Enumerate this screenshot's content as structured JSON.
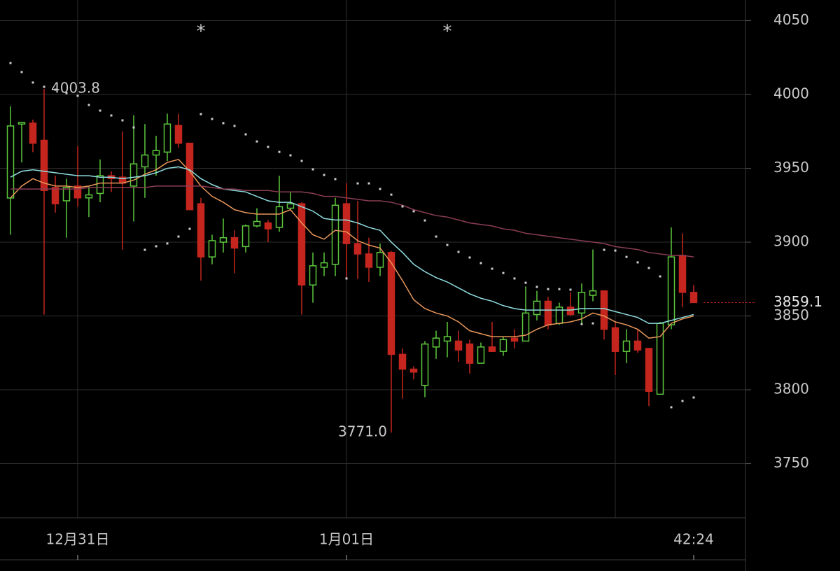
{
  "chart_data": {
    "type": "candlestick",
    "categories": [
      null,
      null,
      null,
      null,
      null,
      null,
      "12月31日",
      null,
      null,
      null,
      null,
      null,
      null,
      null,
      null,
      null,
      null,
      null,
      null,
      null,
      null,
      null,
      null,
      null,
      null,
      null,
      null,
      null,
      null,
      null,
      "1月01日",
      null,
      null,
      null,
      null,
      null,
      null,
      null,
      null,
      null,
      null,
      null,
      null,
      null,
      null,
      null,
      null,
      null,
      null,
      null,
      null,
      null,
      null,
      null,
      null,
      null,
      null,
      null,
      null,
      null,
      null,
      "42:24"
    ],
    "open": [
      3929.9,
      3980,
      3980.6,
      3969,
      3937,
      3928,
      3938,
      3930,
      3933,
      3945,
      3944,
      3938,
      3951,
      3959,
      3961,
      3979,
      3967,
      3926,
      3890,
      3900,
      3903,
      3897,
      3911,
      3913,
      3910,
      3923,
      3926,
      3871,
      3883,
      3885,
      3926,
      3899,
      3892,
      3883,
      3893,
      3824,
      3814,
      3803,
      3829,
      3833,
      3833,
      3831,
      3818,
      3829,
      3826,
      3835,
      3833,
      3851,
      3860,
      3845,
      3856,
      3852,
      3864,
      3867,
      3842,
      3826,
      3833,
      3828,
      3797,
      3844,
      3891,
      3866
    ],
    "high": [
      3992,
      3981,
      3983,
      4003.8,
      3945,
      3943,
      3965,
      3938,
      3956,
      3948,
      3975,
      3986,
      3980,
      3972,
      3987,
      3987,
      3967,
      3930,
      3905,
      3916,
      3908,
      3912,
      3923,
      3915,
      3945,
      3934,
      3927,
      3893,
      3893,
      3930,
      3940,
      3928,
      3903,
      3899,
      3894,
      3828,
      3816,
      3833,
      3840,
      3846,
      3840,
      3834,
      3832,
      3846,
      3836,
      3841,
      3870,
      3867,
      3863,
      3859,
      3866,
      3872,
      3895,
      3867,
      3846,
      3841,
      3841,
      3828,
      3846,
      3910,
      3906,
      3871
    ],
    "low": [
      3905,
      3954,
      3961,
      3851,
      3920,
      3903,
      3924,
      3917,
      3927,
      3934,
      3895,
      3914,
      3930,
      3945,
      3955,
      3964,
      3922,
      3874,
      3885,
      3893,
      3879,
      3893,
      3910,
      3900,
      3907,
      3922,
      3851,
      3859,
      3877,
      3877,
      3875,
      3875,
      3873,
      3877,
      3771,
      3794,
      3807,
      3795,
      3821,
      3822,
      3819,
      3811,
      3818,
      3826,
      3823,
      3828,
      3833,
      3847,
      3841,
      3844,
      3850,
      3845,
      3860,
      3834,
      3810,
      3818,
      3825,
      3789,
      3797,
      3841,
      3856,
      3859.1
    ],
    "close": [
      3978.7,
      3981,
      3967,
      3935,
      3926,
      3937,
      3930,
      3932,
      3945,
      3943,
      3940,
      3953,
      3959,
      3962,
      3980,
      3967,
      3922,
      3890,
      3901,
      3903,
      3896,
      3911,
      3914,
      3909,
      3924,
      3926,
      3871,
      3884,
      3886,
      3925,
      3899,
      3892,
      3883,
      3893,
      3824,
      3814,
      3812,
      3831,
      3835,
      3836,
      3827,
      3818,
      3829,
      3826,
      3834,
      3833,
      3852,
      3860,
      3844,
      3856,
      3851,
      3866,
      3867,
      3841,
      3826,
      3833,
      3827,
      3799,
      3845,
      3890,
      3866,
      3859.1
    ],
    "up_color": "#5cc83c",
    "down_color": "#c4261f",
    "series": [
      {
        "style": "line",
        "color": "#e8965a",
        "values": [
          3930,
          3938,
          3943,
          3940,
          3938,
          3938,
          3937,
          3938,
          3940,
          3940,
          3940,
          3942,
          3946,
          3949,
          3954,
          3956,
          3948,
          3938,
          3931,
          3927,
          3922,
          3920,
          3919,
          3919,
          3919,
          3922,
          3913,
          3905,
          3902,
          3908,
          3907,
          3901,
          3898,
          3896,
          3886,
          3874,
          3861,
          3855,
          3852,
          3850,
          3846,
          3840,
          3838,
          3836,
          3836,
          3836,
          3837,
          3841,
          3844,
          3845,
          3846,
          3848,
          3852,
          3850,
          3846,
          3844,
          3841,
          3835,
          3836,
          3845,
          3848,
          3850
        ]
      },
      {
        "style": "line",
        "color": "#8fdde0",
        "values": [
          3944,
          3948,
          3949,
          3948,
          3947,
          3946,
          3945,
          3945,
          3944,
          3944,
          3943,
          3944,
          3945,
          3947,
          3950,
          3951,
          3949,
          3943,
          3939,
          3936,
          3935,
          3934,
          3931,
          3928,
          3927,
          3927,
          3924,
          3921,
          3916,
          3915,
          3915,
          3913,
          3910,
          3908,
          3900,
          3893,
          3885,
          3880,
          3876,
          3873,
          3869,
          3865,
          3862,
          3860,
          3857,
          3855,
          3854,
          3854,
          3854,
          3854,
          3854,
          3855,
          3855,
          3855,
          3853,
          3851,
          3849,
          3845,
          3845,
          3847,
          3849,
          3851
        ]
      },
      {
        "style": "line",
        "color": "#8a3e52",
        "values": [
          3936,
          3936,
          3936,
          3936,
          3936,
          3936,
          3936,
          3937,
          3937,
          3937,
          3937,
          3937,
          3937,
          3938,
          3938,
          3938,
          3938,
          3938,
          3937,
          3936,
          3936,
          3935,
          3935,
          3935,
          3934,
          3934,
          3934,
          3933,
          3931,
          3931,
          3930,
          3929,
          3928,
          3928,
          3927,
          3925,
          3922,
          3920,
          3918,
          3917,
          3915,
          3913,
          3912,
          3911,
          3909,
          3908,
          3906,
          3905,
          3904,
          3903,
          3902,
          3901,
          3900,
          3899,
          3897,
          3896,
          3895,
          3893,
          3892,
          3891,
          3891,
          3890
        ]
      },
      {
        "style": "dots",
        "color": "#cccccc",
        "values": [
          4021.3,
          4015.2,
          4008.1,
          4005.2,
          4003.3,
          4000.9,
          3999.1,
          3992.9,
          3989.1,
          3985.8,
          3982.5,
          3977.7,
          3894.8,
          3897.2,
          3899.1,
          3903.8,
          3909.0,
          3986.7,
          3983.4,
          3980.6,
          3978.7,
          3973.0,
          3968.2,
          3964.5,
          3961.1,
          3958.8,
          3955.0,
          3949.3,
          3945.5,
          3942.7,
          3875.4,
          3939.8,
          3939.8,
          3936.0,
          3932.2,
          3924.2,
          3920.9,
          3914.7,
          3903.8,
          3898.1,
          3893.4,
          3889.6,
          3885.8,
          3882.0,
          3879.1,
          3875.4,
          3872.5,
          3869.7,
          3868.2,
          3868.2,
          3867.8,
          3844.5,
          3845.0,
          3894.8,
          3894.3,
          3890.0,
          3886.3,
          3882.5,
          3876.8,
          3788.2,
          3792.4,
          3794.8
        ]
      }
    ],
    "annotations": [
      {
        "text": "4003.8",
        "value": 4003.8,
        "at": 3
      },
      {
        "text": "3771.0",
        "value": 3771,
        "at": 34
      },
      {
        "text": "*",
        "at": 17
      },
      {
        "text": "*",
        "at": 39
      }
    ],
    "last_price": 3859.1,
    "last_price_color": "#c4261f",
    "ylim": [
      3713.3,
      4064
    ],
    "yticks": [
      3750,
      3800,
      3850,
      3900,
      3950,
      4000,
      4050
    ],
    "xgrid_at": [
      6,
      30,
      54
    ],
    "grid": true
  }
}
